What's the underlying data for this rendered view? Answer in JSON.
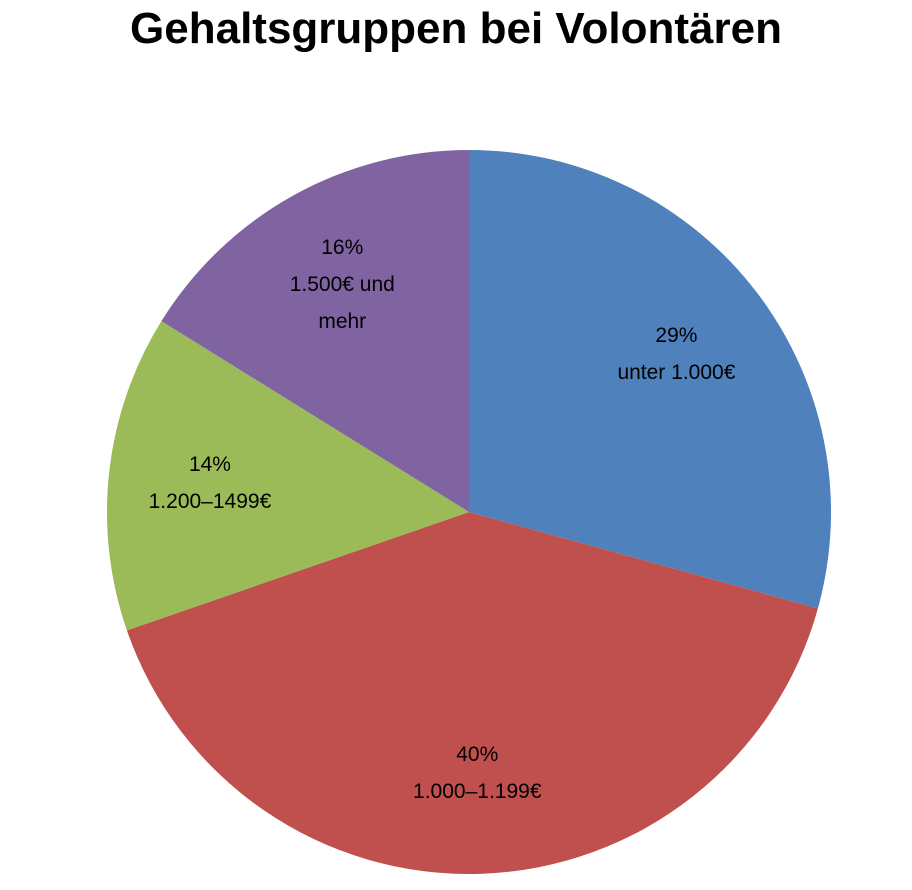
{
  "chart_data": {
    "type": "pie",
    "title": "Gehaltsgruppen bei Volontären",
    "categories": [
      "unter 1.000€",
      "1.000–1.199€",
      "1.200–1499€",
      "1.500€ und mehr"
    ],
    "values": [
      29,
      40,
      14,
      16
    ],
    "value_labels": [
      "29%",
      "40%",
      "14%",
      "16%"
    ],
    "colors": [
      "#4f81bd",
      "#c0504d",
      "#9bbb59",
      "#8064a2"
    ]
  }
}
